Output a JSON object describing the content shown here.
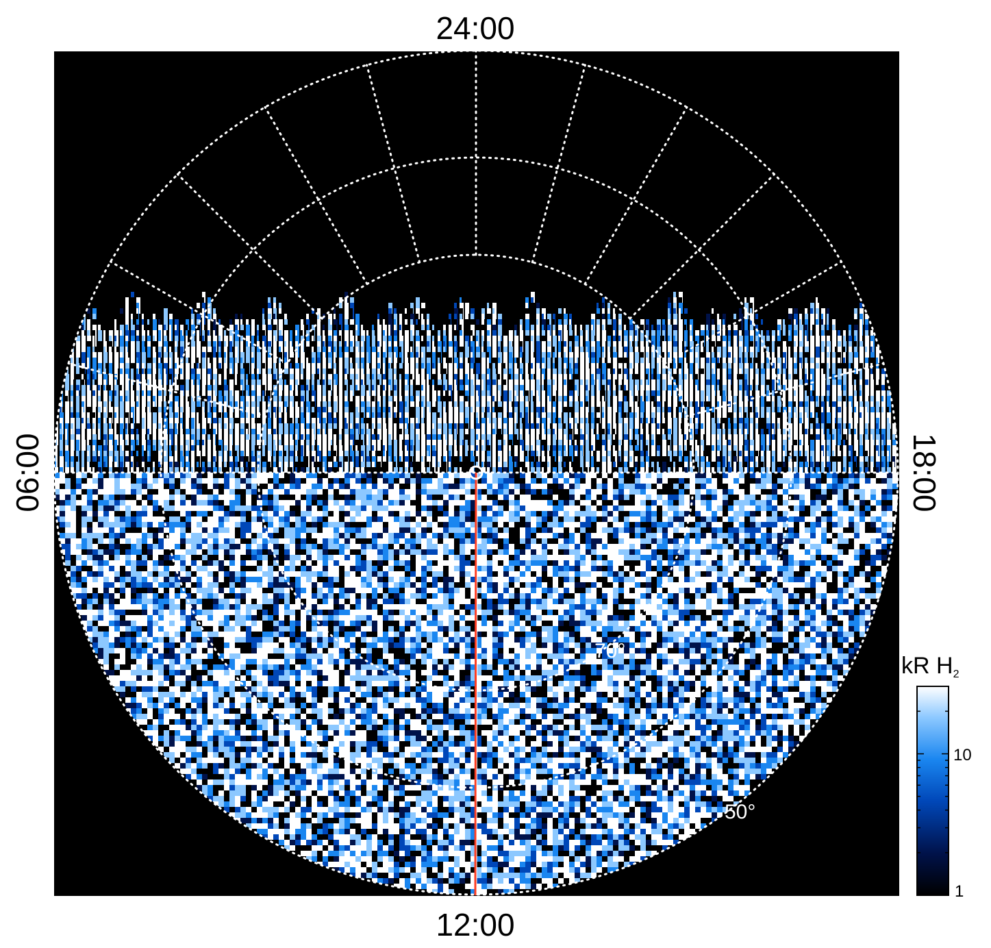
{
  "chart_data": {
    "type": "heatmap",
    "projection": "polar",
    "description_of_view": "polar projection of auroral H2 emission",
    "local_time_labels": {
      "top": "24:00",
      "bottom": "12:00",
      "left": "06:00",
      "right": "18:00"
    },
    "latitude_circle_labels": [
      {
        "text": "70°",
        "latitude": 70
      },
      {
        "text": "50°",
        "latitude": 50
      }
    ],
    "grid": true,
    "colorbar": {
      "title": "kR H",
      "title_subscript": "2",
      "scale": "log",
      "range": [
        1,
        30
      ],
      "ticks": [
        {
          "value": 1,
          "label": "1"
        },
        {
          "value": 10,
          "label": "10"
        }
      ],
      "colors": [
        "#000000",
        "#00124a",
        "#0047b8",
        "#1a86f0",
        "#8cc8ff",
        "#ffffff"
      ]
    },
    "reference_line": {
      "local_time": "12:00",
      "color": "#ff3b1f"
    },
    "colors": {
      "background": "#000000",
      "grid": "#ffffff",
      "frame": "#ffffff"
    }
  }
}
